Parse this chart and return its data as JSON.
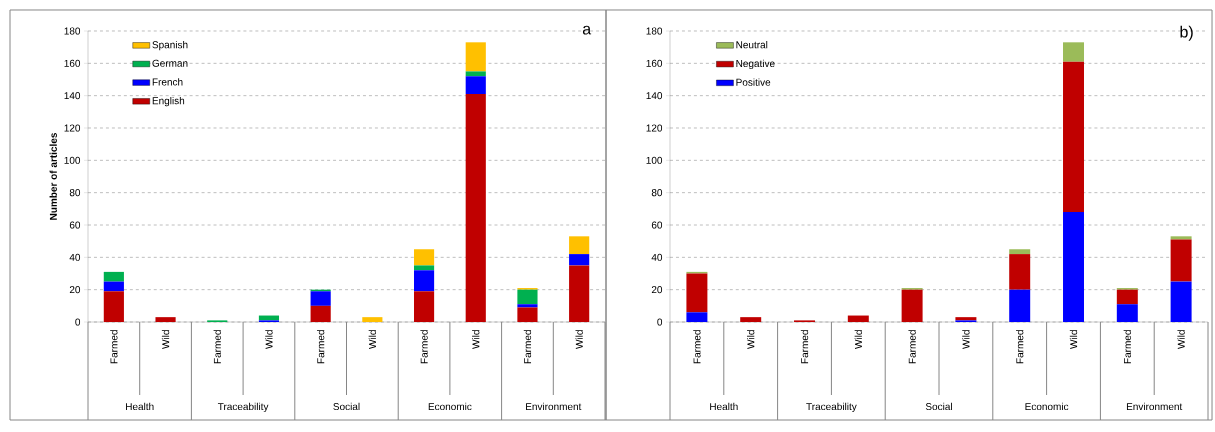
{
  "chart_data": [
    {
      "type": "bar",
      "stacked": true,
      "title": "a",
      "ylabel": "Number of articles",
      "categories": [
        "Farmed",
        "Wild",
        "Farmed",
        "Wild",
        "Farmed",
        "Wild",
        "Farmed",
        "Wild",
        "Farmed",
        "Wild"
      ],
      "annotations": [
        "Health",
        "Traceability",
        "Social",
        "Economic",
        "Environment"
      ],
      "ylim": [
        0,
        180
      ],
      "yticks": [
        0,
        20,
        40,
        60,
        80,
        100,
        120,
        140,
        160,
        180
      ],
      "grid": "y",
      "legend": "top left",
      "series": [
        {
          "name": "English",
          "color": "#c00000",
          "values": [
            19,
            3,
            0,
            0,
            10,
            0,
            19,
            141,
            9,
            35
          ]
        },
        {
          "name": "French",
          "color": "#0000ff",
          "values": [
            6,
            0,
            0,
            1,
            9,
            0,
            13,
            11,
            2,
            7
          ]
        },
        {
          "name": "German",
          "color": "#00b050",
          "values": [
            6,
            0,
            1,
            3,
            1,
            0,
            3,
            3,
            9,
            0
          ]
        },
        {
          "name": "Spanish",
          "color": "#ffc000",
          "values": [
            0,
            0,
            0,
            0,
            0,
            3,
            10,
            18,
            1,
            11
          ]
        }
      ]
    },
    {
      "type": "bar",
      "stacked": true,
      "title": "b)",
      "categories": [
        "Farmed",
        "Wild",
        "Farmed",
        "Wild",
        "Farmed",
        "Wild",
        "Farmed",
        "Wild",
        "Farmed",
        "Wild"
      ],
      "annotations": [
        "Health",
        "Traceability",
        "Social",
        "Economic",
        "Environment"
      ],
      "ylim": [
        0,
        180
      ],
      "yticks": [
        0,
        20,
        40,
        60,
        80,
        100,
        120,
        140,
        160,
        180
      ],
      "grid": "y",
      "legend": "top left",
      "series": [
        {
          "name": "Positive",
          "color": "#0000ff",
          "values": [
            6,
            0,
            0,
            0,
            0,
            1,
            20,
            68,
            11,
            25
          ]
        },
        {
          "name": "Negative",
          "color": "#c00000",
          "values": [
            24,
            3,
            1,
            4,
            20,
            2,
            22,
            93,
            9,
            26
          ]
        },
        {
          "name": "Neutral",
          "color": "#9bbb59",
          "values": [
            1,
            0,
            0,
            0,
            1,
            0,
            3,
            12,
            1,
            2
          ]
        }
      ]
    }
  ]
}
